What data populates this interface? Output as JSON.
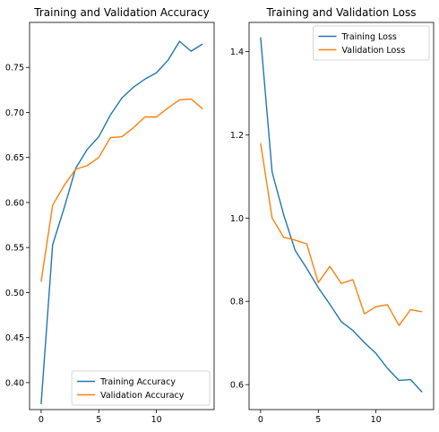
{
  "chart_data": [
    {
      "type": "line",
      "title": "Training and Validation Accuracy",
      "xlabel": "",
      "ylabel": "",
      "xlim": [
        -1,
        15
      ],
      "ylim": [
        0.37,
        0.8
      ],
      "xticks": [
        0,
        5,
        10
      ],
      "xtick_labels": [
        "0",
        "5",
        "10"
      ],
      "yticks": [
        0.4,
        0.45,
        0.5,
        0.55,
        0.6,
        0.65,
        0.7,
        0.75
      ],
      "ytick_labels": [
        "0.40",
        "0.45",
        "0.50",
        "0.55",
        "0.60",
        "0.65",
        "0.70",
        "0.75"
      ],
      "grid": false,
      "legend_position": "lower-right",
      "x": [
        0,
        1,
        2,
        3,
        4,
        5,
        6,
        7,
        8,
        9,
        10,
        11,
        12,
        13,
        14
      ],
      "series": [
        {
          "name": "Training Accuracy",
          "color": "#1f77b4",
          "values": [
            0.376,
            0.553,
            0.594,
            0.638,
            0.659,
            0.673,
            0.697,
            0.716,
            0.728,
            0.737,
            0.744,
            0.758,
            0.779,
            0.768,
            0.776
          ]
        },
        {
          "name": "Validation Accuracy",
          "color": "#ff7f0e",
          "values": [
            0.512,
            0.597,
            0.619,
            0.637,
            0.641,
            0.65,
            0.672,
            0.673,
            0.683,
            0.695,
            0.695,
            0.705,
            0.714,
            0.715,
            0.704
          ]
        }
      ]
    },
    {
      "type": "line",
      "title": "Training and Validation Loss",
      "xlabel": "",
      "ylabel": "",
      "xlim": [
        -1,
        15
      ],
      "ylim": [
        0.54,
        1.47
      ],
      "xticks": [
        0,
        5,
        10
      ],
      "xtick_labels": [
        "0",
        "5",
        "10"
      ],
      "yticks": [
        0.6,
        0.8,
        1.0,
        1.2,
        1.4
      ],
      "ytick_labels": [
        "0.6",
        "0.8",
        "1.0",
        "1.2",
        "1.4"
      ],
      "grid": false,
      "legend_position": "upper-right",
      "x": [
        0,
        1,
        2,
        3,
        4,
        5,
        6,
        7,
        8,
        9,
        10,
        11,
        12,
        13,
        14
      ],
      "series": [
        {
          "name": "Training Loss",
          "color": "#1f77b4",
          "values": [
            1.434,
            1.11,
            1.008,
            0.922,
            0.879,
            0.833,
            0.793,
            0.751,
            0.73,
            0.701,
            0.675,
            0.639,
            0.61,
            0.612,
            0.582
          ]
        },
        {
          "name": "Validation Loss",
          "color": "#ff7f0e",
          "values": [
            1.18,
            1.0,
            0.954,
            0.947,
            0.938,
            0.845,
            0.884,
            0.843,
            0.852,
            0.77,
            0.787,
            0.792,
            0.742,
            0.78,
            0.775
          ]
        }
      ]
    }
  ]
}
